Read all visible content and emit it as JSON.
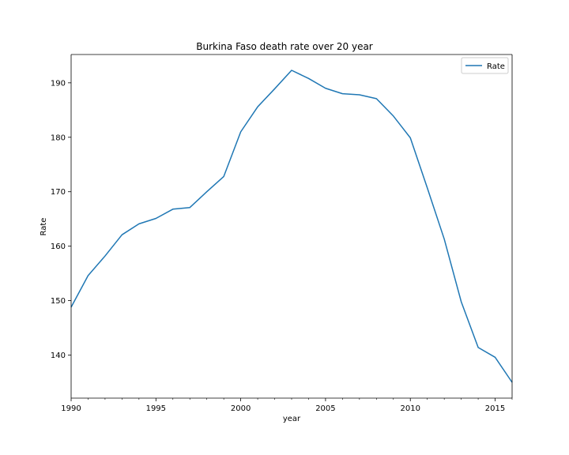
{
  "chart_data": {
    "type": "line",
    "title": "Burkina Faso death rate over 20 year",
    "xlabel": "year",
    "ylabel": "Rate",
    "xlim": [
      1990,
      2016
    ],
    "ylim": [
      132.1,
      195.2
    ],
    "grid": false,
    "legend_position": "top-right",
    "x_ticks": [
      1990,
      1995,
      2000,
      2005,
      2010,
      2015
    ],
    "y_ticks": [
      140,
      150,
      160,
      170,
      180,
      190
    ],
    "x_minor_ticks": [
      1991,
      1992,
      1993,
      1994,
      1996,
      1997,
      1998,
      1999,
      2001,
      2002,
      2003,
      2004,
      2006,
      2007,
      2008,
      2009,
      2011,
      2012,
      2013,
      2014,
      2016
    ],
    "colors": {
      "series": "#1f77b4",
      "axis": "#000000"
    },
    "x": [
      1990,
      1991,
      1992,
      1993,
      1994,
      1995,
      1996,
      1997,
      1998,
      1999,
      2000,
      2001,
      2002,
      2003,
      2004,
      2005,
      2006,
      2007,
      2008,
      2009,
      2010,
      2011,
      2012,
      2013,
      2014,
      2015,
      2016
    ],
    "series": [
      {
        "name": "Rate",
        "values": [
          148.8,
          154.6,
          158.2,
          162.1,
          164.1,
          165.1,
          166.8,
          167.1,
          170.0,
          172.8,
          181.0,
          185.6,
          188.9,
          192.3,
          190.8,
          189.0,
          188.0,
          187.8,
          187.1,
          183.9,
          179.9,
          170.7,
          161.3,
          149.8,
          141.4,
          139.6,
          135.0
        ]
      }
    ]
  }
}
